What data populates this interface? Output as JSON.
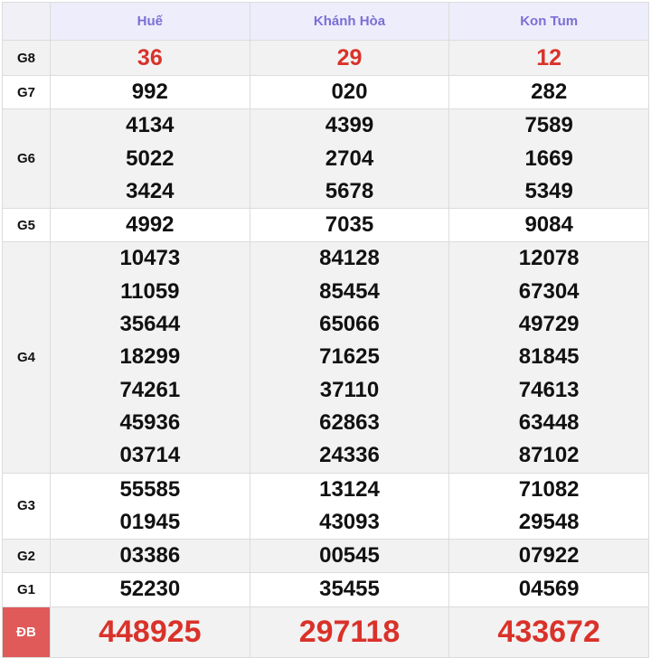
{
  "header": {
    "provinces": [
      "Huế",
      "Khánh Hòa",
      "Kon Tum"
    ]
  },
  "rows": [
    {
      "label": "G8",
      "style": "gray",
      "red": true,
      "values": [
        [
          "36"
        ],
        [
          "29"
        ],
        [
          "12"
        ]
      ]
    },
    {
      "label": "G7",
      "style": "white",
      "values": [
        [
          "992"
        ],
        [
          "020"
        ],
        [
          "282"
        ]
      ]
    },
    {
      "label": "G6",
      "style": "gray",
      "values": [
        [
          "4134",
          "5022",
          "3424"
        ],
        [
          "4399",
          "2704",
          "5678"
        ],
        [
          "7589",
          "1669",
          "5349"
        ]
      ]
    },
    {
      "label": "G5",
      "style": "white",
      "values": [
        [
          "4992"
        ],
        [
          "7035"
        ],
        [
          "9084"
        ]
      ]
    },
    {
      "label": "G4",
      "style": "gray",
      "values": [
        [
          "10473",
          "11059",
          "35644",
          "18299",
          "74261",
          "45936",
          "03714"
        ],
        [
          "84128",
          "85454",
          "65066",
          "71625",
          "37110",
          "62863",
          "24336"
        ],
        [
          "12078",
          "67304",
          "49729",
          "81845",
          "74613",
          "63448",
          "87102"
        ]
      ]
    },
    {
      "label": "G3",
      "style": "white",
      "values": [
        [
          "55585",
          "01945"
        ],
        [
          "13124",
          "43093"
        ],
        [
          "71082",
          "29548"
        ]
      ]
    },
    {
      "label": "G2",
      "style": "gray",
      "values": [
        [
          "03386"
        ],
        [
          "00545"
        ],
        [
          "07922"
        ]
      ]
    },
    {
      "label": "G1",
      "style": "white",
      "values": [
        [
          "52230"
        ],
        [
          "35455"
        ],
        [
          "04569"
        ]
      ]
    },
    {
      "label": "ĐB",
      "style": "gray db",
      "values": [
        [
          "448925"
        ],
        [
          "297118"
        ],
        [
          "433672"
        ]
      ]
    }
  ],
  "colors": {
    "header_text": "#7b6fd6",
    "prize_red": "#d9322a",
    "db_label_bg": "#e05a5a"
  }
}
